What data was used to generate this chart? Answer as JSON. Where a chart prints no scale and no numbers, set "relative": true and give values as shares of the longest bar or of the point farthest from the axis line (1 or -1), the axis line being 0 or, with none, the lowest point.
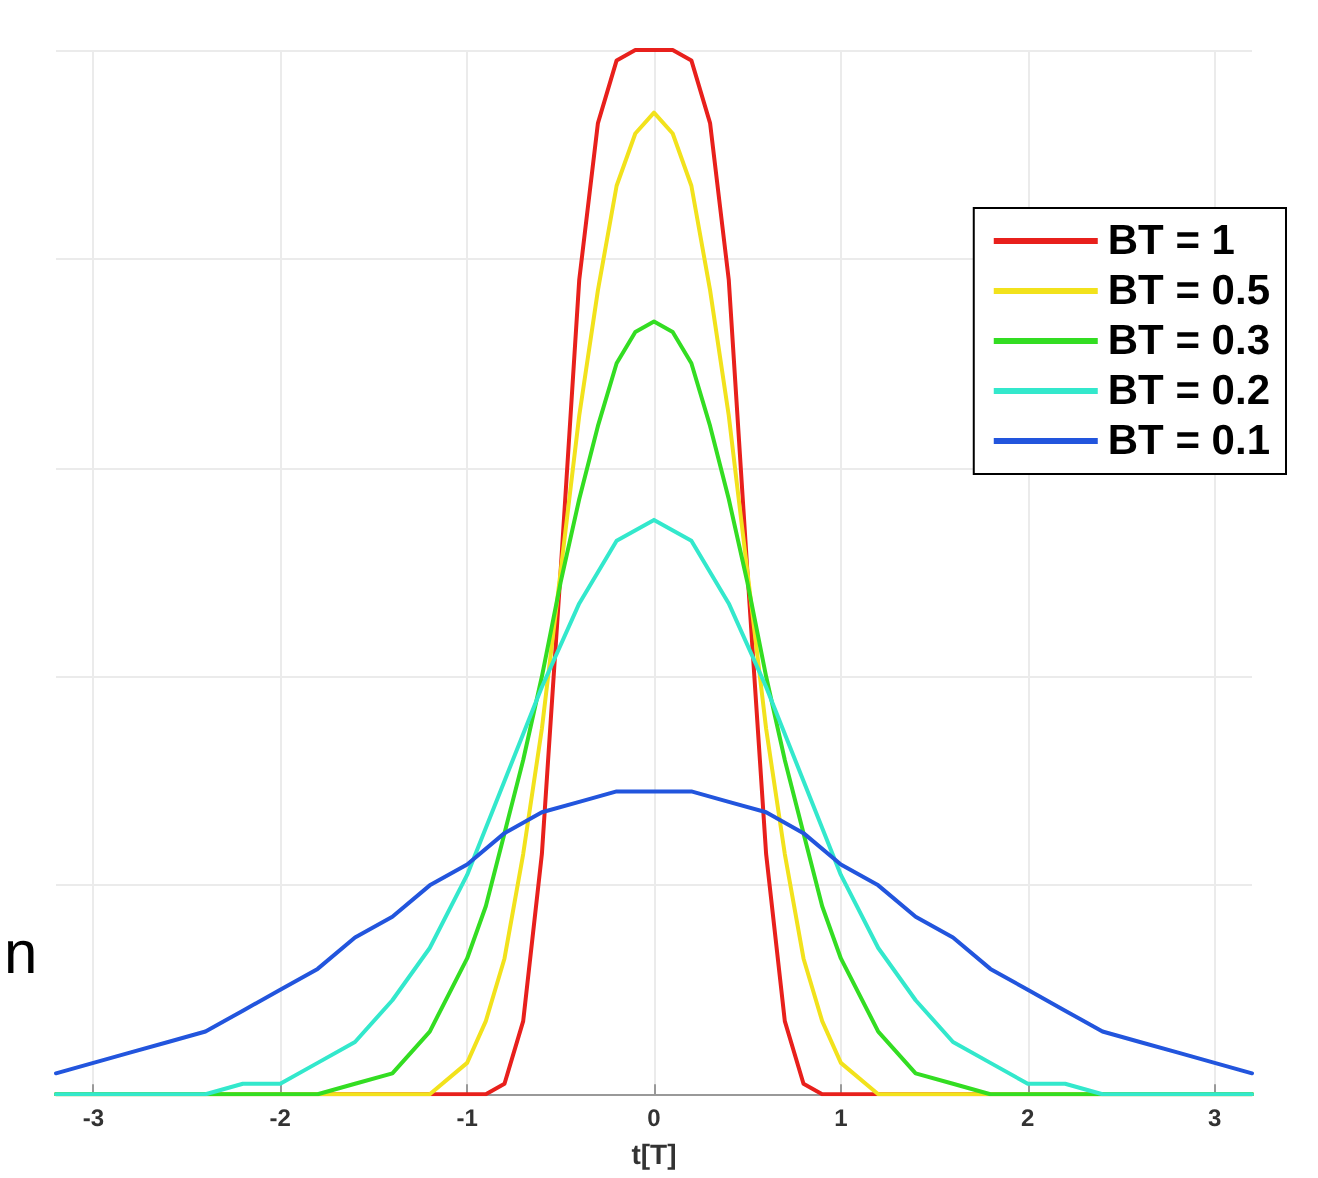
{
  "chart_data": {
    "type": "line",
    "xlabel": "t[T]",
    "relative": true,
    "grid": true,
    "legend": "top right",
    "marker": "none",
    "line_style": "solid",
    "xlim": [
      -3.2,
      3.2
    ],
    "xticks": [
      -3,
      -2,
      -1,
      0,
      1,
      2,
      3
    ],
    "annotations": [
      "n"
    ],
    "series": [
      {
        "name": "BT = 1",
        "color": "#e8201c",
        "x": [
          -3.2,
          -1,
          -0.9,
          -0.8,
          -0.7,
          -0.6,
          -0.5,
          -0.4,
          -0.3,
          -0.2,
          -0.1,
          0,
          0.1,
          0.2,
          0.3,
          0.4,
          0.5,
          0.6,
          0.7,
          0.8,
          0.9,
          1,
          3.2
        ],
        "values": [
          0,
          0,
          0,
          0.01,
          0.07,
          0.23,
          0.5,
          0.78,
          0.93,
          0.99,
          1,
          1,
          1,
          0.99,
          0.93,
          0.78,
          0.5,
          0.23,
          0.07,
          0.01,
          0,
          0,
          0
        ]
      },
      {
        "name": "BT = 0.5",
        "color": "#f2e21c",
        "x": [
          -3.2,
          -1.4,
          -1.2,
          -1,
          -0.9,
          -0.8,
          -0.7,
          -0.6,
          -0.5,
          -0.4,
          -0.3,
          -0.2,
          -0.1,
          0,
          0.1,
          0.2,
          0.3,
          0.4,
          0.5,
          0.6,
          0.7,
          0.8,
          0.9,
          1,
          1.2,
          1.4,
          3.2
        ],
        "values": [
          0,
          0,
          0,
          0.03,
          0.07,
          0.13,
          0.23,
          0.35,
          0.5,
          0.65,
          0.77,
          0.87,
          0.92,
          0.94,
          0.92,
          0.87,
          0.77,
          0.65,
          0.5,
          0.35,
          0.23,
          0.13,
          0.07,
          0.03,
          0,
          0,
          0
        ]
      },
      {
        "name": "BT = 0.3",
        "color": "#33dd22",
        "x": [
          -3.2,
          -2,
          -1.8,
          -1.6,
          -1.4,
          -1.2,
          -1,
          -0.9,
          -0.8,
          -0.7,
          -0.6,
          -0.5,
          -0.4,
          -0.3,
          -0.2,
          -0.1,
          0,
          0.1,
          0.2,
          0.3,
          0.4,
          0.5,
          0.6,
          0.7,
          0.8,
          0.9,
          1,
          1.2,
          1.4,
          1.6,
          1.8,
          2,
          3.2
        ],
        "values": [
          0,
          0,
          0,
          0.01,
          0.02,
          0.06,
          0.13,
          0.18,
          0.25,
          0.32,
          0.4,
          0.49,
          0.57,
          0.64,
          0.7,
          0.73,
          0.74,
          0.73,
          0.7,
          0.64,
          0.57,
          0.49,
          0.4,
          0.32,
          0.25,
          0.18,
          0.13,
          0.06,
          0.02,
          0.01,
          0,
          0,
          0
        ]
      },
      {
        "name": "BT = 0.2",
        "color": "#33e8cc",
        "x": [
          -3.2,
          -2.6,
          -2.4,
          -2.2,
          -2,
          -1.8,
          -1.6,
          -1.4,
          -1.2,
          -1,
          -0.8,
          -0.6,
          -0.4,
          -0.2,
          0,
          0.2,
          0.4,
          0.6,
          0.8,
          1,
          1.2,
          1.4,
          1.6,
          1.8,
          2,
          2.2,
          2.4,
          2.6,
          3.2
        ],
        "values": [
          0,
          0,
          0,
          0.01,
          0.01,
          0.03,
          0.05,
          0.09,
          0.14,
          0.21,
          0.3,
          0.39,
          0.47,
          0.53,
          0.55,
          0.53,
          0.47,
          0.39,
          0.3,
          0.21,
          0.14,
          0.09,
          0.05,
          0.03,
          0.01,
          0.01,
          0,
          0,
          0
        ]
      },
      {
        "name": "BT = 0.1",
        "color": "#2255dd",
        "x": [
          -3.2,
          -3,
          -2.8,
          -2.6,
          -2.4,
          -2.2,
          -2,
          -1.8,
          -1.6,
          -1.4,
          -1.2,
          -1,
          -0.8,
          -0.6,
          -0.4,
          -0.2,
          0,
          0.2,
          0.4,
          0.6,
          0.8,
          1,
          1.2,
          1.4,
          1.6,
          1.8,
          2,
          2.2,
          2.4,
          2.6,
          2.8,
          3,
          3.2
        ],
        "values": [
          0.02,
          0.03,
          0.04,
          0.05,
          0.06,
          0.08,
          0.1,
          0.12,
          0.15,
          0.17,
          0.2,
          0.22,
          0.25,
          0.27,
          0.28,
          0.29,
          0.29,
          0.29,
          0.28,
          0.27,
          0.25,
          0.22,
          0.2,
          0.17,
          0.15,
          0.12,
          0.1,
          0.08,
          0.06,
          0.05,
          0.04,
          0.03,
          0.02
        ]
      }
    ]
  }
}
